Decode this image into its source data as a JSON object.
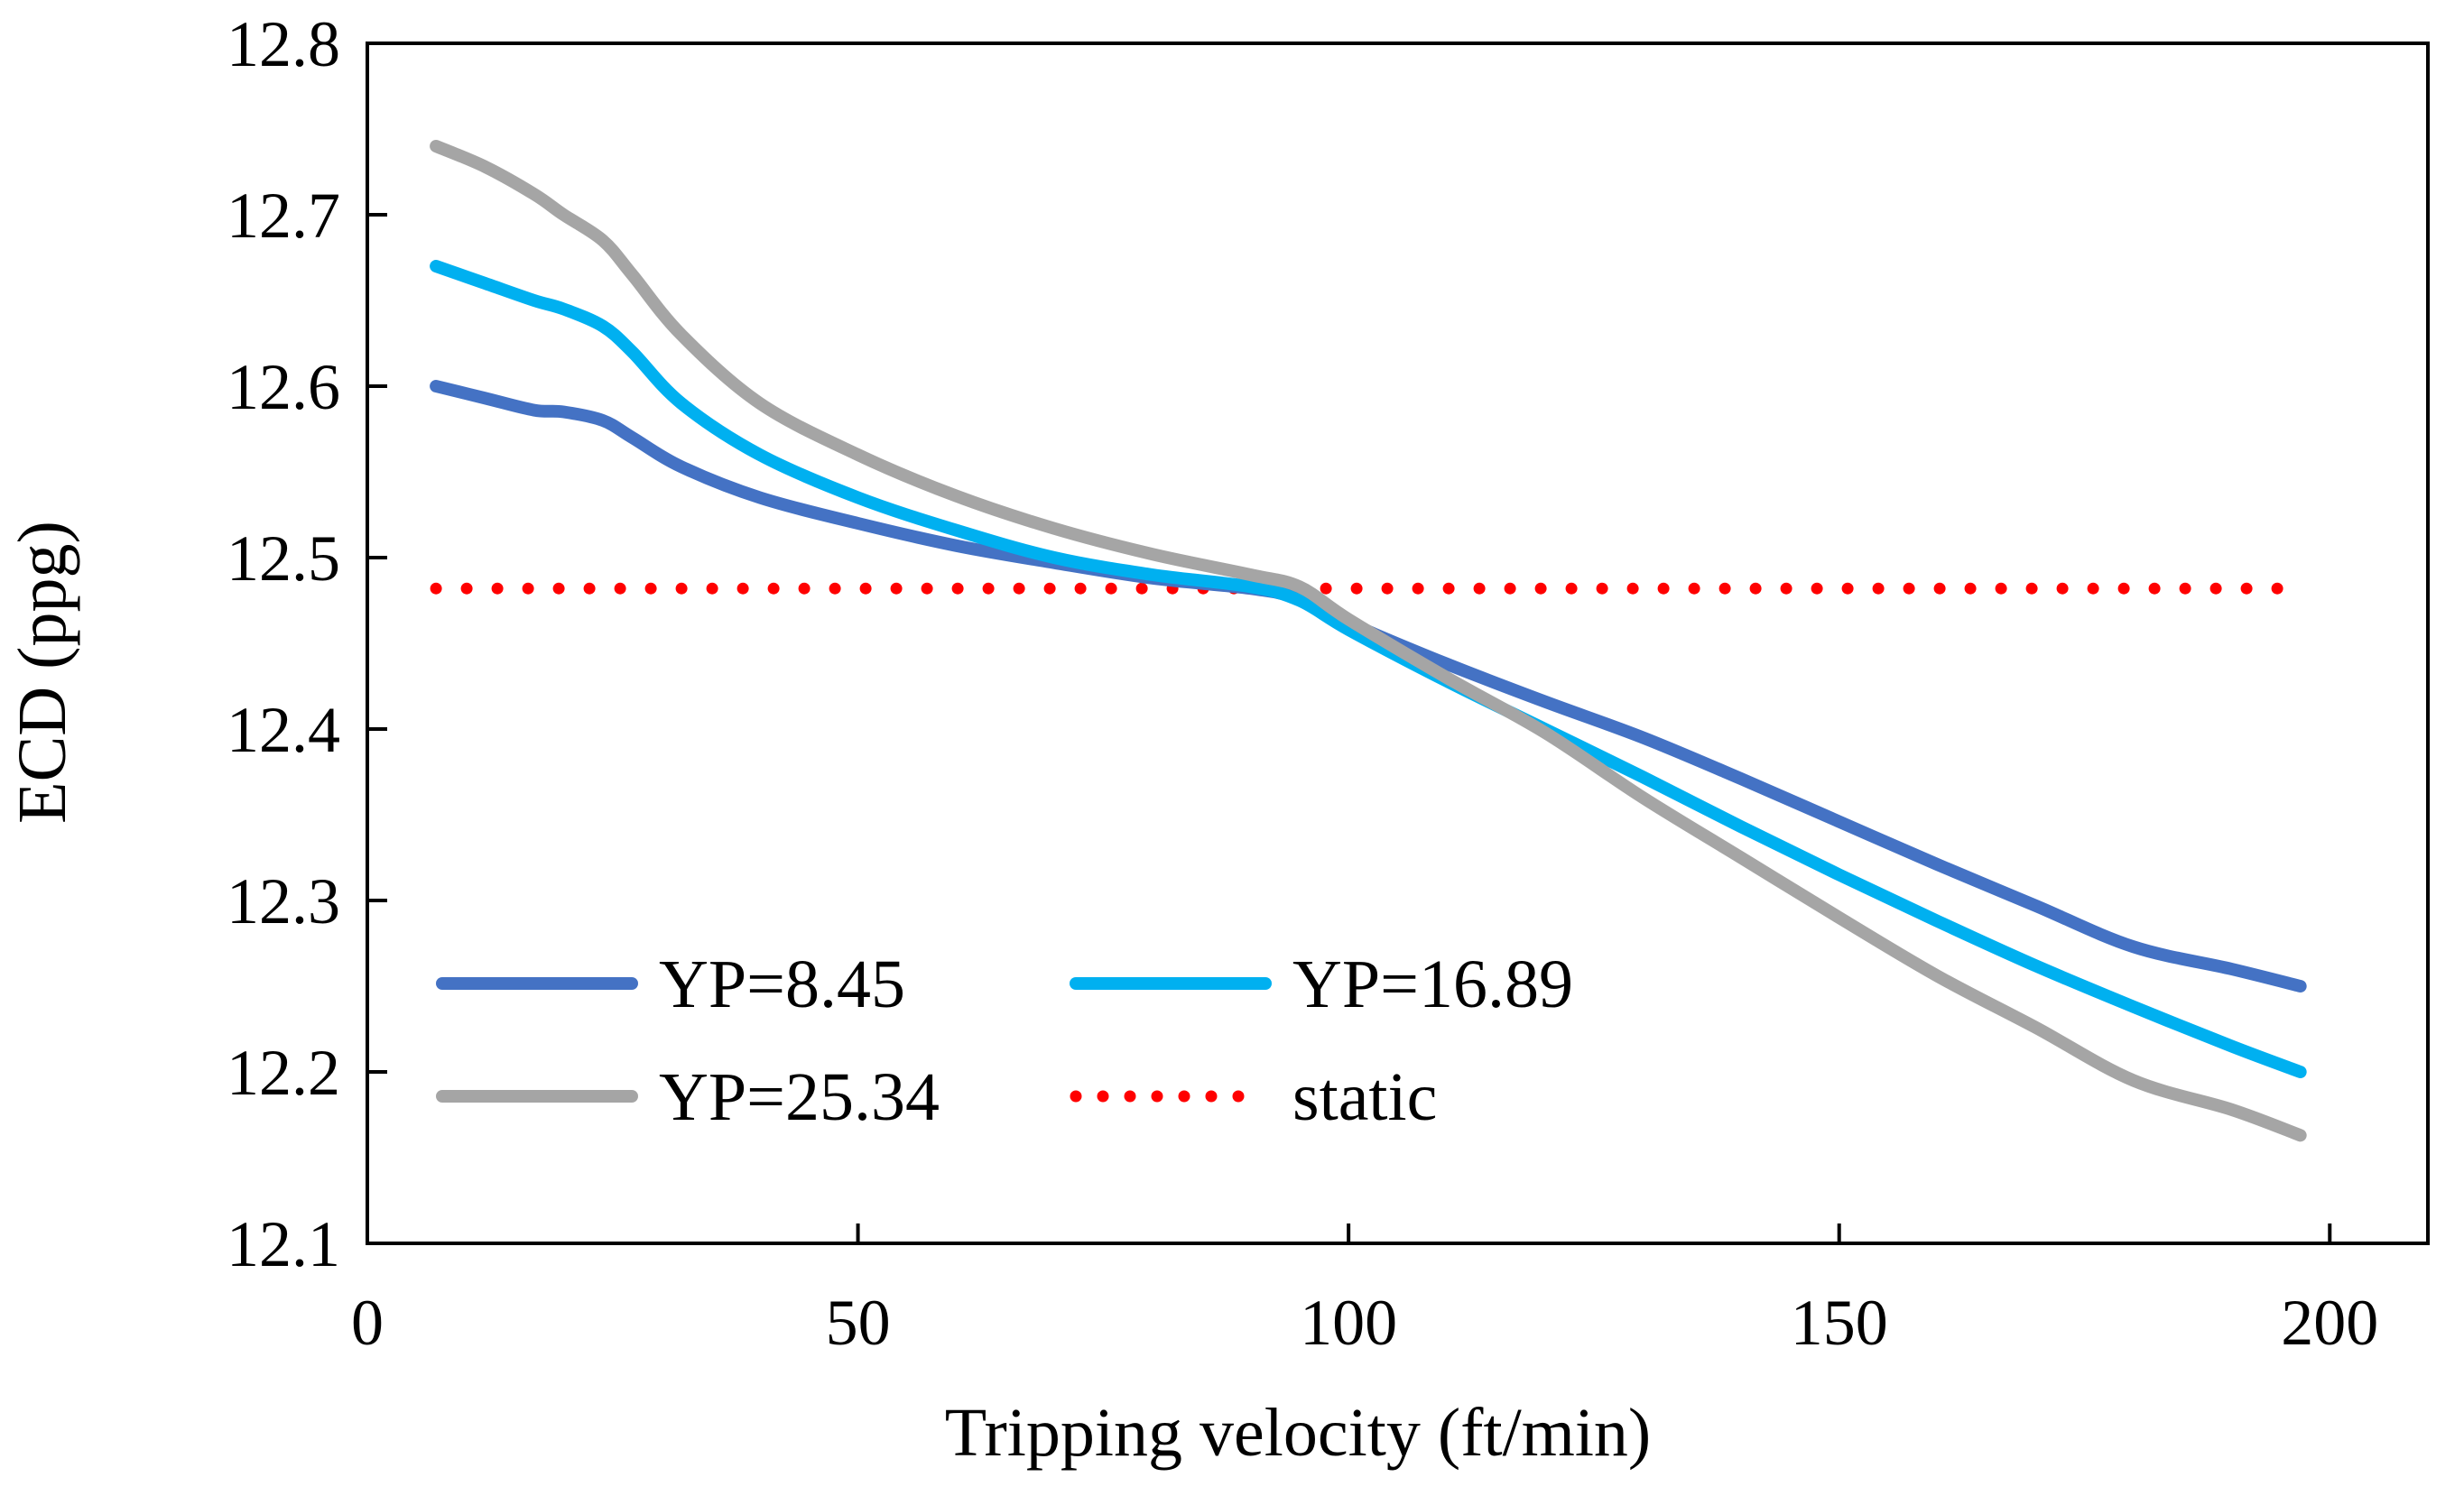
{
  "chart_data": {
    "type": "line",
    "title": "",
    "xlabel": "Tripping velocity (ft/min)",
    "ylabel": "ECD (ppg)",
    "xlim": [
      0,
      210
    ],
    "ylim": [
      12.1,
      12.8
    ],
    "xticks": [
      0,
      50,
      100,
      150,
      200
    ],
    "yticks": [
      12.1,
      12.2,
      12.3,
      12.4,
      12.5,
      12.6,
      12.7,
      12.8
    ],
    "grid": false,
    "legend_position": "lower-left",
    "series": [
      {
        "name": "YP=8.45",
        "color": "#4472C4",
        "style": "solid",
        "x": [
          7,
          12,
          17,
          20,
          24,
          27,
          32,
          40,
          50,
          60,
          70,
          80,
          90,
          95,
          100,
          110,
          120,
          130,
          140,
          150,
          160,
          170,
          180,
          190,
          197
        ],
        "y": [
          12.6,
          12.593,
          12.586,
          12.585,
          12.58,
          12.57,
          12.553,
          12.535,
          12.52,
          12.507,
          12.497,
          12.488,
          12.482,
          12.476,
          12.462,
          12.438,
          12.416,
          12.395,
          12.371,
          12.346,
          12.321,
          12.297,
          12.273,
          12.26,
          12.25
        ]
      },
      {
        "name": "YP=16.89",
        "color": "#00B0F0",
        "style": "solid",
        "x": [
          7,
          12,
          17,
          20,
          24,
          27,
          32,
          40,
          50,
          60,
          70,
          80,
          90,
          95,
          100,
          110,
          120,
          130,
          140,
          150,
          160,
          170,
          180,
          190,
          197
        ],
        "y": [
          12.67,
          12.66,
          12.65,
          12.645,
          12.635,
          12.62,
          12.59,
          12.56,
          12.535,
          12.516,
          12.5,
          12.49,
          12.483,
          12.475,
          12.458,
          12.428,
          12.4,
          12.372,
          12.343,
          12.315,
          12.288,
          12.262,
          12.238,
          12.215,
          12.2
        ]
      },
      {
        "name": "YP=25.34",
        "color": "#A5A5A5",
        "style": "solid",
        "x": [
          7,
          12,
          17,
          20,
          24,
          27,
          32,
          40,
          50,
          60,
          70,
          80,
          90,
          95,
          100,
          110,
          120,
          130,
          140,
          150,
          160,
          170,
          180,
          190,
          197
        ],
        "y": [
          12.74,
          12.728,
          12.712,
          12.7,
          12.685,
          12.665,
          12.63,
          12.59,
          12.56,
          12.536,
          12.517,
          12.502,
          12.49,
          12.483,
          12.464,
          12.43,
          12.398,
          12.36,
          12.325,
          12.29,
          12.256,
          12.226,
          12.195,
          12.178,
          12.163
        ]
      },
      {
        "name": "static",
        "color": "#FF0000",
        "style": "dotted",
        "x": [
          7,
          197
        ],
        "y": [
          12.482,
          12.482
        ]
      }
    ]
  }
}
